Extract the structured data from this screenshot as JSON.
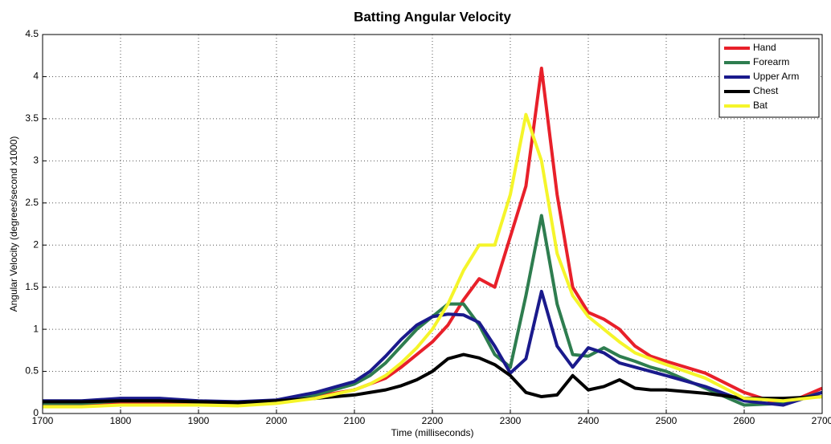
{
  "chart_data": {
    "type": "line",
    "title": "Batting Angular Velocity",
    "x_label": "Time (milliseconds)",
    "y_label": "Angular Velocity (degrees/second x1000)",
    "x": [
      1700,
      1750,
      1800,
      1850,
      1900,
      1950,
      2000,
      2050,
      2100,
      2120,
      2140,
      2160,
      2180,
      2200,
      2220,
      2240,
      2260,
      2280,
      2300,
      2320,
      2340,
      2360,
      2380,
      2400,
      2420,
      2440,
      2460,
      2480,
      2500,
      2550,
      2600,
      2650,
      2700
    ],
    "series": [
      {
        "name": "Hand",
        "color": "#e8202a",
        "values": [
          0.1,
          0.1,
          0.12,
          0.12,
          0.12,
          0.12,
          0.15,
          0.2,
          0.28,
          0.35,
          0.42,
          0.55,
          0.7,
          0.85,
          1.05,
          1.35,
          1.6,
          1.5,
          2.1,
          2.7,
          4.1,
          2.6,
          1.5,
          1.2,
          1.12,
          1.0,
          0.8,
          0.68,
          0.62,
          0.48,
          0.25,
          0.1,
          0.3
        ]
      },
      {
        "name": "Forearm",
        "color": "#2e7d4f",
        "values": [
          0.12,
          0.12,
          0.15,
          0.15,
          0.14,
          0.13,
          0.15,
          0.22,
          0.35,
          0.45,
          0.6,
          0.8,
          1.0,
          1.15,
          1.3,
          1.3,
          1.05,
          0.7,
          0.55,
          1.4,
          2.35,
          1.3,
          0.7,
          0.68,
          0.78,
          0.68,
          0.62,
          0.55,
          0.5,
          0.3,
          0.1,
          0.12,
          0.25
        ]
      },
      {
        "name": "Upper Arm",
        "color": "#1a1a8c",
        "values": [
          0.15,
          0.15,
          0.18,
          0.18,
          0.15,
          0.14,
          0.16,
          0.25,
          0.38,
          0.5,
          0.68,
          0.88,
          1.05,
          1.15,
          1.18,
          1.17,
          1.08,
          0.8,
          0.48,
          0.65,
          1.45,
          0.8,
          0.55,
          0.78,
          0.72,
          0.6,
          0.55,
          0.5,
          0.45,
          0.32,
          0.15,
          0.1,
          0.25
        ]
      },
      {
        "name": "Chest",
        "color": "#000000",
        "values": [
          0.14,
          0.14,
          0.15,
          0.15,
          0.14,
          0.13,
          0.15,
          0.18,
          0.22,
          0.25,
          0.28,
          0.33,
          0.4,
          0.5,
          0.65,
          0.7,
          0.66,
          0.58,
          0.45,
          0.25,
          0.2,
          0.22,
          0.45,
          0.28,
          0.32,
          0.4,
          0.3,
          0.28,
          0.28,
          0.24,
          0.18,
          0.18,
          0.2
        ]
      },
      {
        "name": "Bat",
        "color": "#f5f52a",
        "values": [
          0.08,
          0.08,
          0.1,
          0.1,
          0.1,
          0.09,
          0.12,
          0.18,
          0.28,
          0.35,
          0.45,
          0.6,
          0.78,
          1.0,
          1.3,
          1.7,
          2.0,
          2.0,
          2.6,
          3.55,
          3.0,
          1.9,
          1.4,
          1.15,
          1.0,
          0.85,
          0.72,
          0.65,
          0.58,
          0.42,
          0.18,
          0.15,
          0.2
        ]
      }
    ],
    "xlim": [
      1700,
      2700
    ],
    "xticks": [
      1700,
      1800,
      1900,
      2000,
      2100,
      2200,
      2300,
      2400,
      2500,
      2600,
      2700
    ],
    "ylim": [
      0,
      4.5
    ],
    "yticks": [
      0,
      0.5,
      1,
      1.5,
      2,
      2.5,
      3,
      3.5,
      4,
      4.5
    ],
    "grid": true,
    "legend": "upper right"
  }
}
